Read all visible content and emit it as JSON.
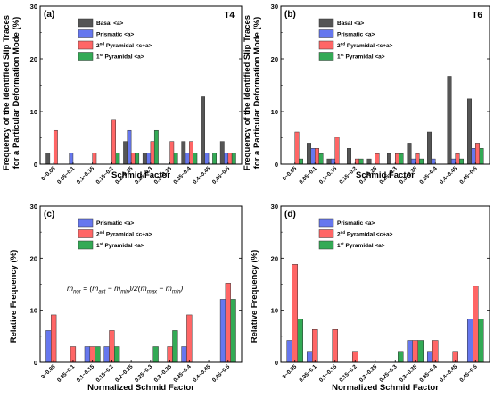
{
  "shared": {
    "ylabel_top": "Frequency of the Identified Slip Traces",
    "ylabel_top2": "for a Particular Deformation Mode (%)",
    "ylabel_bottom": "Relative Frequency (%)",
    "tick_labels": [
      "0~0.05",
      "0.05~0.1",
      "0.1~0.15",
      "0.15~0.2",
      "0.2~0.25",
      "0.25~0.3",
      "0.3~0.35",
      "0.35~0.4",
      "0.4~0.45",
      "0.45~0.5"
    ],
    "colors": {
      "basal": "#555555",
      "prismatic": "#6677ee",
      "pyr2": "#ff6666",
      "pyr1": "#33aa55"
    }
  },
  "chart_data": [
    {
      "type": "bar",
      "panel": "(a)",
      "title": "T4",
      "xlabel": "Schmid Factor",
      "ylim": [
        0,
        30
      ],
      "yticks": [
        0,
        10,
        20,
        30
      ],
      "grid": false,
      "legend_position": "top-left",
      "categories": [
        "0~0.05",
        "0.05~0.1",
        "0.1~0.15",
        "0.15~0.2",
        "0.2~0.25",
        "0.25~0.3",
        "0.3~0.35",
        "0.35~0.4",
        "0.4~0.45",
        "0.45~0.5"
      ],
      "series": [
        {
          "name": "Basal <a>",
          "color": "#555555",
          "values": [
            2.1,
            0,
            0,
            0,
            4.3,
            2.1,
            0,
            4.3,
            12.8,
            4.3
          ]
        },
        {
          "name": "Prismatic <a>",
          "color": "#6677ee",
          "values": [
            0,
            2.1,
            0,
            0,
            6.4,
            2.1,
            0,
            2.1,
            2.1,
            2.1
          ]
        },
        {
          "name": "2nd Pyramidal <c+a>",
          "color": "#ff6666",
          "values": [
            6.4,
            0,
            2.1,
            8.5,
            2.1,
            4.3,
            4.3,
            4.3,
            0,
            2.1
          ]
        },
        {
          "name": "1st Pyramidal <a>",
          "color": "#33aa55",
          "values": [
            0,
            0,
            0,
            2.1,
            2.1,
            6.4,
            2.1,
            2.1,
            2.1,
            2.1
          ]
        }
      ]
    },
    {
      "type": "bar",
      "panel": "(b)",
      "title": "T6",
      "xlabel": "Schmid Factor",
      "ylim": [
        0,
        30
      ],
      "yticks": [
        0,
        10,
        20,
        30
      ],
      "grid": false,
      "legend_position": "top-left",
      "categories": [
        "0~0.05",
        "0.05~0.1",
        "0.1~0.15",
        "0.15~0.2",
        "0.2~0.25",
        "0.25~0.3",
        "0.3~0.35",
        "0.35~0.4",
        "0.4~0.45",
        "0.45~0.5"
      ],
      "series": [
        {
          "name": "Basal <a>",
          "color": "#555555",
          "values": [
            0,
            4.0,
            1.0,
            3.0,
            1.0,
            2.0,
            4.0,
            6.1,
            16.7,
            12.4
          ]
        },
        {
          "name": "Prismatic <a>",
          "color": "#6677ee",
          "values": [
            0,
            3.0,
            1.0,
            0,
            0,
            0,
            1.0,
            1.0,
            1.0,
            3.0
          ]
        },
        {
          "name": "2nd Pyramidal <c+a>",
          "color": "#ff6666",
          "values": [
            6.1,
            3.0,
            5.1,
            1.0,
            2.0,
            2.0,
            2.0,
            0,
            2.0,
            4.0
          ]
        },
        {
          "name": "1st Pyramidal <a>",
          "color": "#33aa55",
          "values": [
            1.0,
            2.0,
            0,
            1.0,
            0,
            2.0,
            1.0,
            0,
            1.0,
            3.0
          ]
        }
      ]
    },
    {
      "type": "bar",
      "panel": "(c)",
      "xlabel": "Normalized Schmid Factor",
      "ylim": [
        0,
        30
      ],
      "yticks": [
        0,
        10,
        20,
        30
      ],
      "grid": false,
      "legend_position": "top-left",
      "annotation": "m_nor = (m_act − m_min)/2(m_max − m_min)",
      "categories": [
        "0~0.05",
        "0.05~0.1",
        "0.1~0.15",
        "0.15~0.2",
        "0.2~0.25",
        "0.25~0.3",
        "0.3~0.35",
        "0.35~0.4",
        "0.4~0.45",
        "0.45~0.5"
      ],
      "series": [
        {
          "name": "Prismatic <a>",
          "color": "#6677ee",
          "values": [
            6.1,
            0,
            3.0,
            3.0,
            0,
            0,
            0,
            3.0,
            0,
            12.1
          ]
        },
        {
          "name": "2nd Pyramidal <c+a>",
          "color": "#ff6666",
          "values": [
            9.1,
            3.0,
            3.0,
            6.1,
            0,
            0,
            3.0,
            9.1,
            0,
            15.2
          ]
        },
        {
          "name": "1st Pyramidal <a>",
          "color": "#33aa55",
          "values": [
            0,
            0,
            3.0,
            3.0,
            0,
            3.0,
            6.1,
            0,
            0,
            12.1
          ]
        }
      ]
    },
    {
      "type": "bar",
      "panel": "(d)",
      "xlabel": "Normalized Schmid Factor",
      "ylim": [
        0,
        30
      ],
      "yticks": [
        0,
        10,
        20,
        30
      ],
      "grid": false,
      "legend_position": "top-left",
      "categories": [
        "0~0.05",
        "0.05~0.1",
        "0.1~0.15",
        "0.15~0.2",
        "0.2~0.25",
        "0.25~0.3",
        "0.3~0.35",
        "0.35~0.4",
        "0.4~0.45",
        "0.45~0.5"
      ],
      "series": [
        {
          "name": "Prismatic <a>",
          "color": "#6677ee",
          "values": [
            4.2,
            2.1,
            0,
            0,
            0,
            0,
            4.2,
            2.1,
            0,
            8.3
          ]
        },
        {
          "name": "2nd Pyramidal <c+a>",
          "color": "#ff6666",
          "values": [
            18.8,
            6.3,
            6.3,
            2.1,
            0,
            0,
            4.2,
            4.2,
            2.1,
            14.6
          ]
        },
        {
          "name": "1st Pyramidal <a>",
          "color": "#33aa55",
          "values": [
            8.3,
            0,
            0,
            0,
            0,
            2.1,
            4.2,
            0,
            0,
            8.3
          ]
        }
      ]
    }
  ]
}
